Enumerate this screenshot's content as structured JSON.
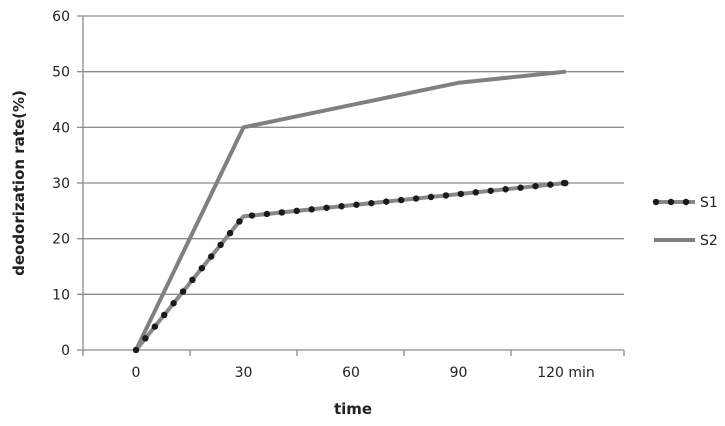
{
  "chart_data": {
    "type": "line",
    "title": "",
    "xlabel": "time",
    "ylabel": "deodorization rate(%)",
    "categories": [
      "0",
      "30",
      "60",
      "90",
      "120 min"
    ],
    "x": [
      0,
      30,
      60,
      90,
      120
    ],
    "x_unit": "min",
    "series": [
      {
        "name": "S1",
        "values": [
          0,
          24,
          26,
          28,
          30
        ],
        "color": "#888888",
        "marker": "dots",
        "marker_color": "#1a1a1a"
      },
      {
        "name": "S2",
        "values": [
          0,
          40,
          44,
          48,
          50
        ],
        "color": "#808080",
        "marker": "none"
      }
    ],
    "ylim": [
      0,
      60
    ],
    "yticks": [
      0,
      10,
      20,
      30,
      40,
      50,
      60
    ],
    "grid": true,
    "legend_position": "right"
  },
  "labels": {
    "xlabel": "time",
    "ylabel": "deodorization rate(%)",
    "legend": [
      "S1",
      "S2"
    ]
  }
}
